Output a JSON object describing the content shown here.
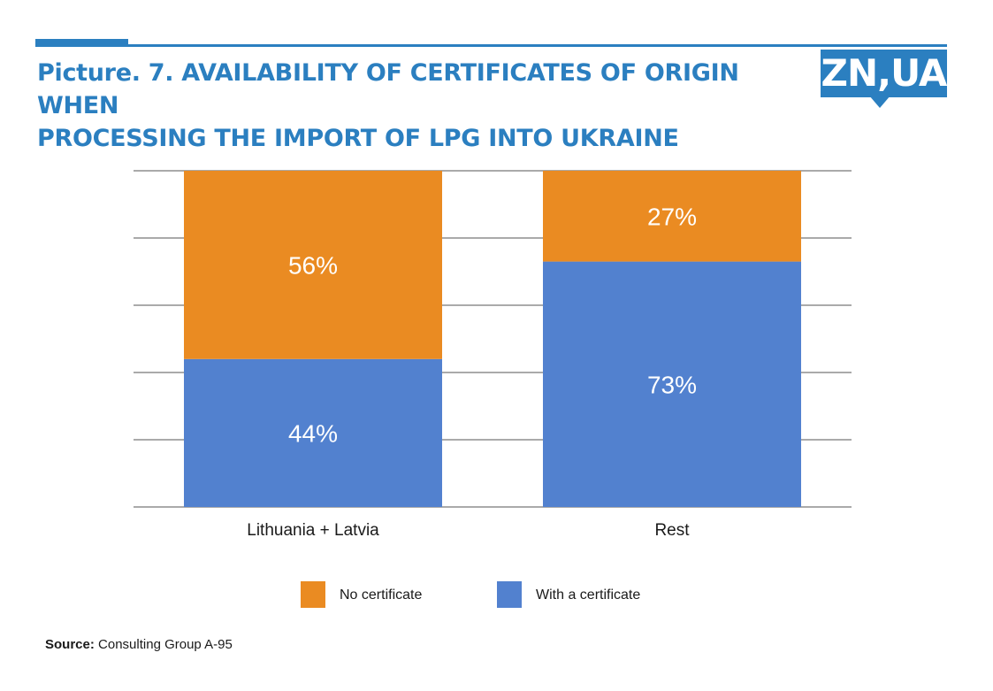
{
  "header": {
    "title_line1": "Picture. 7. AVAILABILITY OF CERTIFICATES OF ORIGIN WHEN",
    "title_line2": "PROCESSING THE IMPORT OF LPG INTO UKRAINE",
    "logo_text": "ZN,UA"
  },
  "footer": {
    "source_label": "Source:",
    "source_text": "Consulting Group A-95"
  },
  "colors": {
    "accent": "#2b7fc0",
    "no_certificate": "#ea8b22",
    "with_certificate": "#5281cf",
    "gridline": "#555555"
  },
  "chart_data": {
    "type": "bar",
    "stacked": true,
    "categories": [
      "Lithuania + Latvia",
      "Rest"
    ],
    "series": [
      {
        "name": "With a certificate",
        "values": [
          44,
          73
        ],
        "labels": [
          "44%",
          "73%"
        ]
      },
      {
        "name": "No certificate",
        "values": [
          56,
          27
        ],
        "labels": [
          "56%",
          "27%"
        ]
      }
    ],
    "legend": [
      "No certificate",
      "With a certificate"
    ],
    "legend_position": "bottom",
    "ylim": [
      0,
      100
    ],
    "grid": true,
    "title": "",
    "xlabel": "",
    "ylabel": ""
  }
}
